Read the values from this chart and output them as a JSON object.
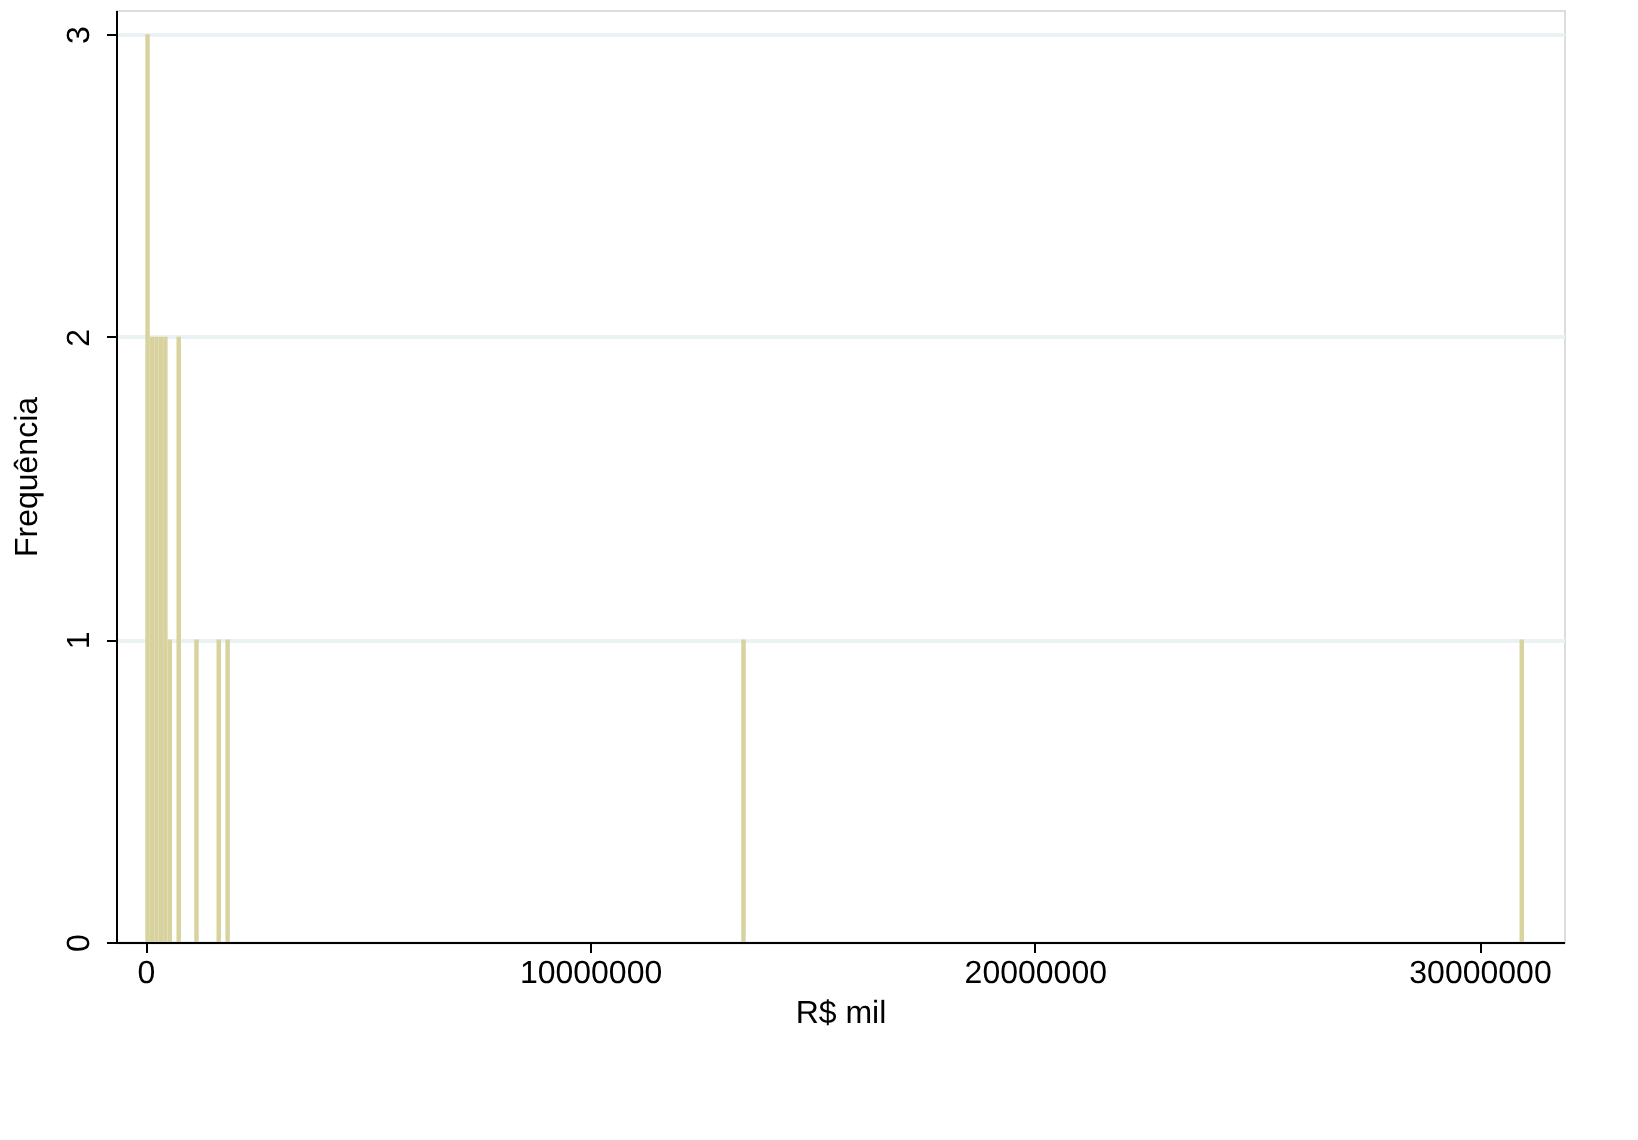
{
  "chart_data": {
    "type": "histogram",
    "xlabel": "R$ mil",
    "ylabel": "Frequência",
    "bins": [
      0,
      100000,
      200000,
      300000,
      400000,
      500000,
      600000,
      700000,
      800000,
      1100000,
      1200000,
      1600000,
      1700000,
      1800000,
      1900000,
      13400000,
      13500000,
      30900000,
      31000000
    ],
    "values": [
      3,
      2,
      2,
      2,
      2,
      1,
      0,
      2,
      0,
      1,
      0,
      1,
      0,
      1,
      0,
      1,
      0,
      1
    ],
    "color": "#d8d29e",
    "xlim": [
      -660000,
      31900000
    ],
    "xticks": [
      0,
      10000000,
      20000000,
      30000000
    ],
    "ylim": [
      0,
      3.08
    ],
    "yticks": [
      0,
      1,
      2,
      3
    ],
    "grid": "y"
  }
}
